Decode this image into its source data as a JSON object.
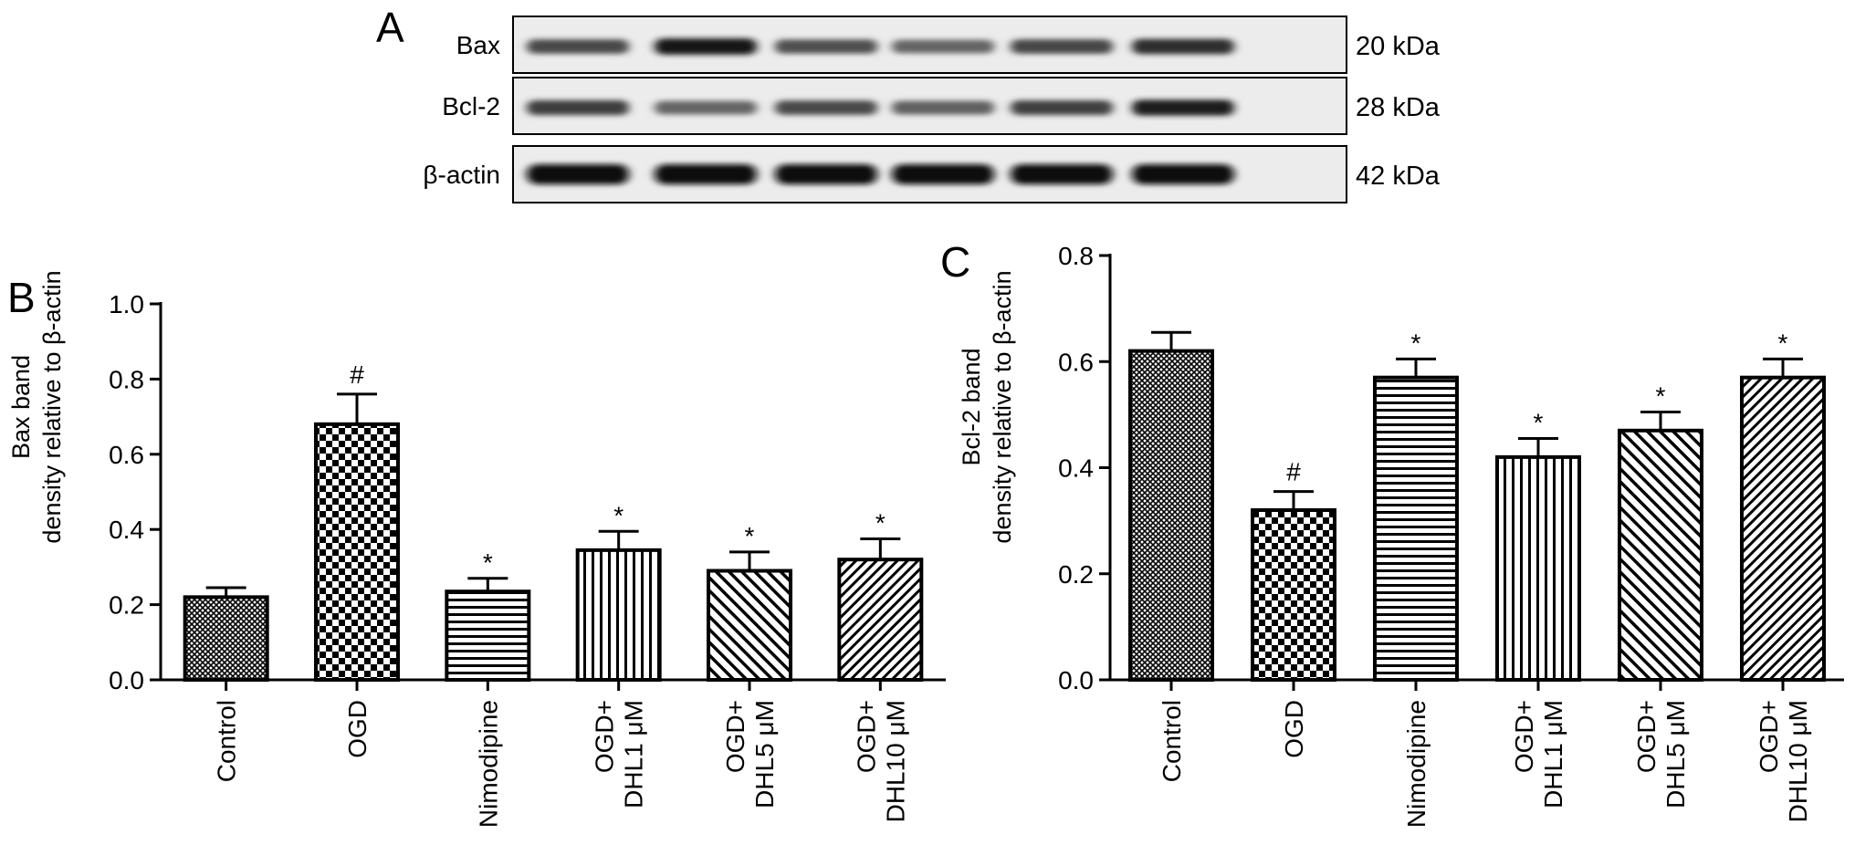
{
  "panel_a": {
    "letter": "A",
    "rows": [
      {
        "protein": "Bax",
        "size": "20 kDa",
        "intensities": [
          0.62,
          0.95,
          0.58,
          0.45,
          0.63,
          0.78
        ]
      },
      {
        "protein": "Bcl-2",
        "size": "28 kDa",
        "intensities": [
          0.7,
          0.45,
          0.62,
          0.48,
          0.68,
          0.88
        ]
      },
      {
        "protein": "β-actin",
        "size": "42 kDa",
        "intensities": [
          1.0,
          1.0,
          1.0,
          1.0,
          1.0,
          1.0
        ]
      }
    ]
  },
  "chart_data": [
    {
      "panel": "B",
      "type": "bar",
      "categories": [
        {
          "line1": "Control",
          "line2": ""
        },
        {
          "line1": "OGD",
          "line2": ""
        },
        {
          "line1": "Nimodipine",
          "line2": ""
        },
        {
          "line1": "OGD+",
          "line2": "DHL1 μM"
        },
        {
          "line1": "OGD+",
          "line2": "DHL5 μM"
        },
        {
          "line1": "OGD+",
          "line2": "DHL10 μM"
        }
      ],
      "values": [
        0.22,
        0.68,
        0.235,
        0.345,
        0.29,
        0.32
      ],
      "errors": [
        0.025,
        0.08,
        0.035,
        0.05,
        0.05,
        0.055
      ],
      "markers": [
        "",
        "#",
        "*",
        "*",
        "*",
        "*"
      ],
      "patterns": [
        "crosshatch",
        "checker",
        "horizontal",
        "vertical",
        "diagonal",
        "diagonal-dense"
      ],
      "ylabel_line1": "Bax band",
      "ylabel_line2": "density relative to β-actin",
      "ylim": [
        0,
        1.0
      ],
      "yticks": [
        "0.0",
        "0.2",
        "0.4",
        "0.6",
        "0.8",
        "1.0"
      ]
    },
    {
      "panel": "C",
      "type": "bar",
      "categories": [
        {
          "line1": "Control",
          "line2": ""
        },
        {
          "line1": "OGD",
          "line2": ""
        },
        {
          "line1": "Nimodipine",
          "line2": ""
        },
        {
          "line1": "OGD+",
          "line2": "DHL1 μM"
        },
        {
          "line1": "OGD+",
          "line2": "DHL5 μM"
        },
        {
          "line1": "OGD+",
          "line2": "DHL10 μM"
        }
      ],
      "values": [
        0.62,
        0.32,
        0.57,
        0.42,
        0.47,
        0.57
      ],
      "errors": [
        0.035,
        0.035,
        0.035,
        0.035,
        0.035,
        0.035
      ],
      "markers": [
        "",
        "#",
        "*",
        "*",
        "*",
        "*"
      ],
      "patterns": [
        "crosshatch",
        "checker",
        "horizontal",
        "vertical",
        "diagonal",
        "diagonal-dense"
      ],
      "ylabel_line1": "Bcl-2 band",
      "ylabel_line2": "density relative to β-actin",
      "ylim": [
        0,
        0.8
      ],
      "yticks": [
        "0.0",
        "0.2",
        "0.4",
        "0.6",
        "0.8"
      ]
    }
  ]
}
